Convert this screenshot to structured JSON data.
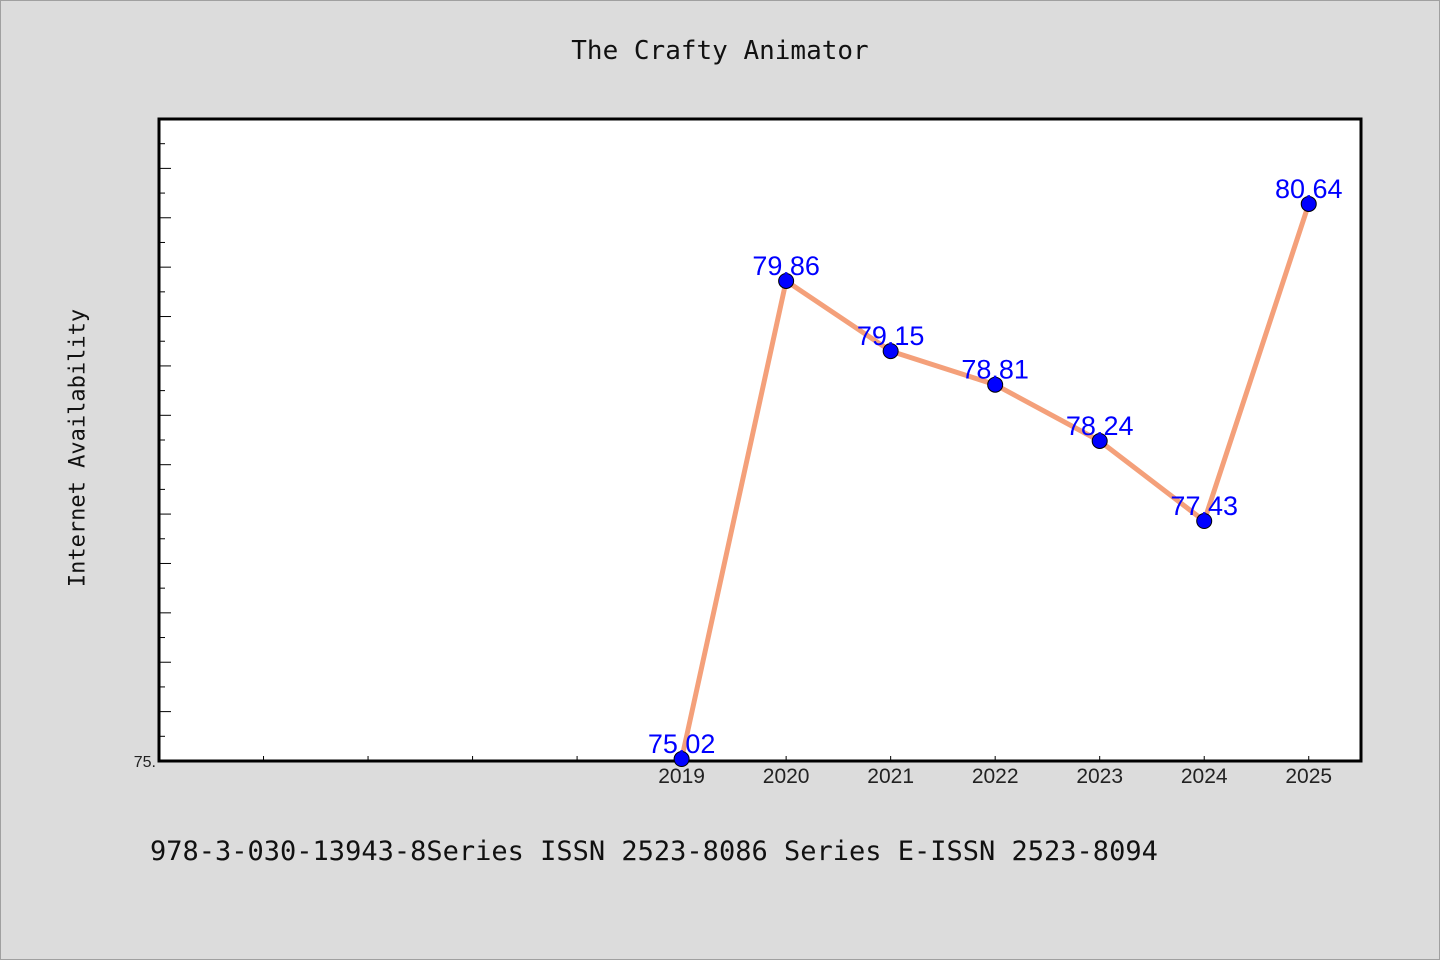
{
  "chart_data": {
    "type": "line",
    "title": "The Crafty Animator",
    "ylabel": "Internet Availability",
    "xlabel": "",
    "x": [
      "2019",
      "2020",
      "2021",
      "2022",
      "2023",
      "2024",
      "2025"
    ],
    "series": [
      {
        "values": [
          75.02,
          79.86,
          79.15,
          78.81,
          78.24,
          77.43,
          80.64
        ],
        "data_labels": [
          "75.02",
          "79.86",
          "79.15",
          "78.81",
          "78.24",
          "77.43",
          "80.64"
        ]
      }
    ],
    "xlim": [
      2014,
      2025.5
    ],
    "ylim": [
      75.0,
      81.5
    ],
    "y_tick_labels": [
      "75."
    ],
    "grid": false,
    "line_color": "#f4a07a",
    "marker_color": "#0000ff",
    "label_color": "#0000ff"
  },
  "footer": "978-3-030-13943-8Series ISSN 2523-8086 Series E-ISSN 2523-8094"
}
